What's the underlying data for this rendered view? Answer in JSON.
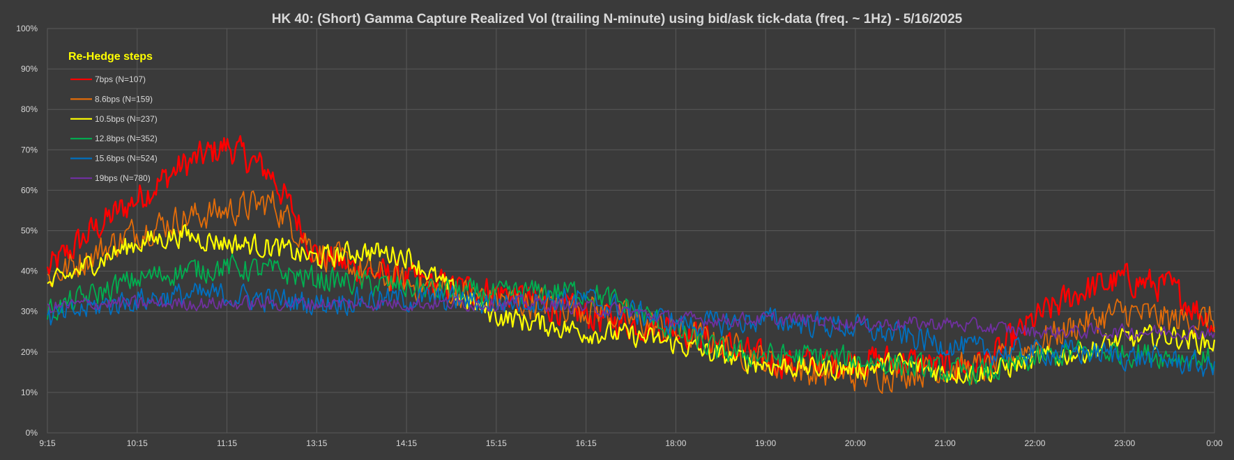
{
  "chart_data": {
    "type": "line",
    "title": "HK 40: (Short) Gamma Capture Realized Vol (trailing N-minute) using bid/ask tick-data (freq. ~ 1Hz) - 5/16/2025",
    "xlabel": "",
    "ylabel": "",
    "ylim": [
      0,
      100
    ],
    "yticks": [
      "0%",
      "10%",
      "20%",
      "30%",
      "40%",
      "50%",
      "60%",
      "70%",
      "80%",
      "90%",
      "100%"
    ],
    "xticks": [
      "9:15",
      "10:15",
      "11:15",
      "13:15",
      "14:15",
      "15:15",
      "16:15",
      "18:00",
      "19:00",
      "20:00",
      "21:00",
      "22:00",
      "23:00",
      "0:00"
    ],
    "grid": true,
    "legend": {
      "title": "Re-Hedge steps",
      "placement": "top-left"
    },
    "x": [
      "9:15",
      "9:45",
      "10:15",
      "10:45",
      "11:15",
      "11:45",
      "13:15",
      "13:45",
      "14:15",
      "14:45",
      "15:15",
      "15:45",
      "16:15",
      "17:00",
      "18:00",
      "18:30",
      "19:00",
      "19:30",
      "20:00",
      "20:30",
      "21:00",
      "21:30",
      "22:00",
      "22:30",
      "23:00",
      "23:30",
      "0:00"
    ],
    "series": [
      {
        "name": "7bps  (N=107)",
        "color": "#ff0000",
        "width": 2.5,
        "noise": 3.5,
        "values": [
          40,
          50,
          58,
          66,
          71,
          64,
          44,
          40,
          38,
          36,
          35,
          32,
          29,
          27,
          26,
          22,
          18,
          17,
          18,
          18,
          16,
          18,
          28,
          35,
          38,
          36,
          27
        ]
      },
      {
        "name": "8.6bps  (N=159)",
        "color": "#e36c09",
        "width": 1.8,
        "noise": 3.5,
        "values": [
          38,
          44,
          50,
          53,
          55,
          57,
          45,
          40,
          37,
          35,
          33,
          32,
          31,
          28,
          25,
          22,
          18,
          15,
          14,
          15,
          16,
          16,
          22,
          27,
          30,
          28,
          28
        ]
      },
      {
        "name": "10.5bps  (N=237)",
        "color": "#ffff00",
        "width": 2.2,
        "noise": 2.5,
        "values": [
          36,
          42,
          47,
          49,
          47,
          46,
          43,
          45,
          44,
          35,
          29,
          27,
          25,
          24,
          22,
          19,
          17,
          16,
          16,
          17,
          15,
          15,
          18,
          20,
          23,
          24,
          22
        ]
      },
      {
        "name": "12.8bps  (N=352)",
        "color": "#00b050",
        "width": 1.8,
        "noise": 2.8,
        "values": [
          30,
          34,
          38,
          40,
          41,
          40,
          38,
          37,
          36,
          35,
          34,
          35,
          35,
          31,
          25,
          20,
          19,
          19,
          18,
          17,
          15,
          15,
          18,
          20,
          20,
          19,
          18
        ]
      },
      {
        "name": "15.6bps  (N=524)",
        "color": "#0070c0",
        "width": 1.8,
        "noise": 2.8,
        "values": [
          28,
          31,
          33,
          34,
          34,
          33,
          32,
          33,
          33,
          33,
          32,
          33,
          33,
          30,
          27,
          27,
          28,
          27,
          26,
          24,
          22,
          20,
          20,
          20,
          19,
          18,
          16
        ]
      },
      {
        "name": "19bps  (N=780)",
        "color": "#7030a0",
        "width": 1.8,
        "noise": 1.6,
        "values": [
          31,
          32,
          32,
          32,
          32,
          32,
          32,
          32,
          32,
          32,
          32,
          32,
          31,
          30,
          28,
          28,
          28,
          28,
          27,
          27,
          27,
          26,
          25,
          25,
          25,
          25,
          25
        ]
      }
    ]
  }
}
